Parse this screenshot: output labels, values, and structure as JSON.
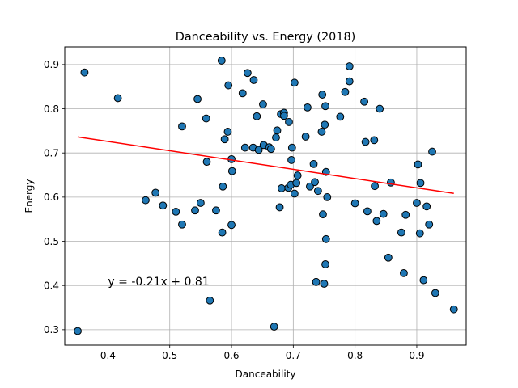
{
  "chart_data": {
    "type": "scatter",
    "title": "Danceability vs. Energy (2018)",
    "xlabel": "Danceability",
    "ylabel": "Energy",
    "xlim": [
      0.33,
      0.98
    ],
    "ylim": [
      0.265,
      0.94
    ],
    "xticks": [
      0.4,
      0.5,
      0.6,
      0.7,
      0.8,
      0.9
    ],
    "yticks": [
      0.3,
      0.4,
      0.5,
      0.6,
      0.7,
      0.8,
      0.9
    ],
    "grid": true,
    "point_color": "#1f77b4",
    "point_edge_color": "#000000",
    "line_color": "#ff0000",
    "points": [
      [
        0.351,
        0.297
      ],
      [
        0.362,
        0.882
      ],
      [
        0.416,
        0.824
      ],
      [
        0.461,
        0.593
      ],
      [
        0.477,
        0.61
      ],
      [
        0.489,
        0.581
      ],
      [
        0.51,
        0.567
      ],
      [
        0.52,
        0.538
      ],
      [
        0.52,
        0.76
      ],
      [
        0.541,
        0.57
      ],
      [
        0.545,
        0.822
      ],
      [
        0.55,
        0.587
      ],
      [
        0.559,
        0.778
      ],
      [
        0.56,
        0.68
      ],
      [
        0.565,
        0.366
      ],
      [
        0.575,
        0.57
      ],
      [
        0.584,
        0.909
      ],
      [
        0.585,
        0.52
      ],
      [
        0.586,
        0.624
      ],
      [
        0.589,
        0.731
      ],
      [
        0.594,
        0.748
      ],
      [
        0.595,
        0.853
      ],
      [
        0.6,
        0.537
      ],
      [
        0.6,
        0.686
      ],
      [
        0.601,
        0.659
      ],
      [
        0.618,
        0.835
      ],
      [
        0.622,
        0.712
      ],
      [
        0.626,
        0.881
      ],
      [
        0.635,
        0.712
      ],
      [
        0.636,
        0.865
      ],
      [
        0.641,
        0.783
      ],
      [
        0.644,
        0.707
      ],
      [
        0.651,
        0.81
      ],
      [
        0.652,
        0.718
      ],
      [
        0.661,
        0.713
      ],
      [
        0.664,
        0.709
      ],
      [
        0.669,
        0.307
      ],
      [
        0.672,
        0.735
      ],
      [
        0.674,
        0.751
      ],
      [
        0.678,
        0.577
      ],
      [
        0.68,
        0.788
      ],
      [
        0.681,
        0.62
      ],
      [
        0.685,
        0.791
      ],
      [
        0.685,
        0.784
      ],
      [
        0.692,
        0.621
      ],
      [
        0.693,
        0.77
      ],
      [
        0.696,
        0.628
      ],
      [
        0.697,
        0.684
      ],
      [
        0.698,
        0.712
      ],
      [
        0.702,
        0.859
      ],
      [
        0.702,
        0.608
      ],
      [
        0.705,
        0.632
      ],
      [
        0.707,
        0.649
      ],
      [
        0.72,
        0.737
      ],
      [
        0.723,
        0.803
      ],
      [
        0.727,
        0.624
      ],
      [
        0.733,
        0.675
      ],
      [
        0.735,
        0.634
      ],
      [
        0.737,
        0.408
      ],
      [
        0.74,
        0.614
      ],
      [
        0.746,
        0.748
      ],
      [
        0.747,
        0.832
      ],
      [
        0.748,
        0.561
      ],
      [
        0.75,
        0.404
      ],
      [
        0.751,
        0.764
      ],
      [
        0.752,
        0.806
      ],
      [
        0.752,
        0.448
      ],
      [
        0.753,
        0.657
      ],
      [
        0.753,
        0.505
      ],
      [
        0.755,
        0.6
      ],
      [
        0.776,
        0.782
      ],
      [
        0.784,
        0.838
      ],
      [
        0.791,
        0.896
      ],
      [
        0.791,
        0.862
      ],
      [
        0.8,
        0.586
      ],
      [
        0.815,
        0.816
      ],
      [
        0.817,
        0.725
      ],
      [
        0.82,
        0.568
      ],
      [
        0.831,
        0.729
      ],
      [
        0.832,
        0.625
      ],
      [
        0.835,
        0.546
      ],
      [
        0.84,
        0.8
      ],
      [
        0.846,
        0.562
      ],
      [
        0.854,
        0.463
      ],
      [
        0.858,
        0.633
      ],
      [
        0.875,
        0.52
      ],
      [
        0.879,
        0.428
      ],
      [
        0.882,
        0.56
      ],
      [
        0.9,
        0.587
      ],
      [
        0.902,
        0.674
      ],
      [
        0.905,
        0.518
      ],
      [
        0.906,
        0.632
      ],
      [
        0.911,
        0.412
      ],
      [
        0.916,
        0.579
      ],
      [
        0.92,
        0.538
      ],
      [
        0.925,
        0.703
      ],
      [
        0.93,
        0.383
      ],
      [
        0.96,
        0.346
      ]
    ],
    "regression": {
      "slope": -0.21,
      "intercept": 0.81,
      "x_range": [
        0.351,
        0.96
      ],
      "label": "y = -0.21x + 0.81",
      "label_at": [
        0.4,
        0.4
      ]
    }
  }
}
